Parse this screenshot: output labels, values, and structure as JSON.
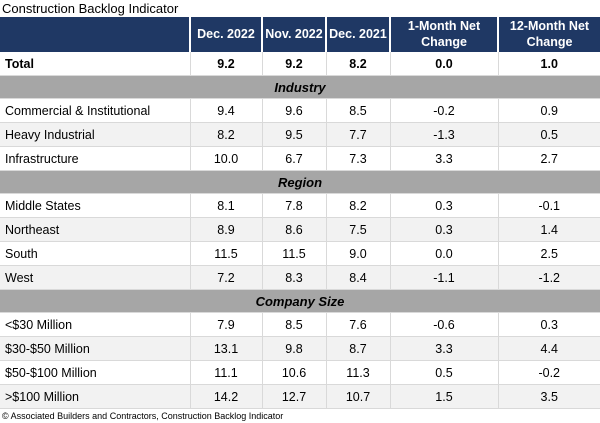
{
  "title": "Construction Backlog Indicator",
  "footer": "© Associated Builders and Contractors, Construction Backlog Indicator",
  "colors": {
    "header_bg": "#1F3864",
    "header_text": "#FFFFFF",
    "section_band_bg": "#A6A6A6",
    "alt_row_bg": "#F2F2F2",
    "grid_line": "#D9D9D9"
  },
  "chart_data": {
    "type": "table",
    "title": "Construction Backlog Indicator",
    "columns": [
      "",
      "Dec. 2022",
      "Nov. 2022",
      "Dec. 2021",
      "1-Month Net Change",
      "12-Month Net Change"
    ],
    "total_row": {
      "label": "Total",
      "values": [
        "9.2",
        "9.2",
        "8.2",
        "0.0",
        "1.0"
      ]
    },
    "sections": [
      {
        "name": "Industry",
        "rows": [
          {
            "label": "Commercial & Institutional",
            "values": [
              "9.4",
              "9.6",
              "8.5",
              "-0.2",
              "0.9"
            ]
          },
          {
            "label": "Heavy Industrial",
            "values": [
              "8.2",
              "9.5",
              "7.7",
              "-1.3",
              "0.5"
            ]
          },
          {
            "label": "Infrastructure",
            "values": [
              "10.0",
              "6.7",
              "7.3",
              "3.3",
              "2.7"
            ]
          }
        ]
      },
      {
        "name": "Region",
        "rows": [
          {
            "label": "Middle States",
            "values": [
              "8.1",
              "7.8",
              "8.2",
              "0.3",
              "-0.1"
            ]
          },
          {
            "label": "Northeast",
            "values": [
              "8.9",
              "8.6",
              "7.5",
              "0.3",
              "1.4"
            ]
          },
          {
            "label": "South",
            "values": [
              "11.5",
              "11.5",
              "9.0",
              "0.0",
              "2.5"
            ]
          },
          {
            "label": "West",
            "values": [
              "7.2",
              "8.3",
              "8.4",
              "-1.1",
              "-1.2"
            ]
          }
        ]
      },
      {
        "name": "Company Size",
        "rows": [
          {
            "label": "<$30 Million",
            "values": [
              "7.9",
              "8.5",
              "7.6",
              "-0.6",
              "0.3"
            ]
          },
          {
            "label": "$30-$50 Million",
            "values": [
              "13.1",
              "9.8",
              "8.7",
              "3.3",
              "4.4"
            ]
          },
          {
            "label": "$50-$100 Million",
            "values": [
              "11.1",
              "10.6",
              "11.3",
              "0.5",
              "-0.2"
            ]
          },
          {
            "label": ">$100 Million",
            "values": [
              "14.2",
              "12.7",
              "10.7",
              "1.5",
              "3.5"
            ]
          }
        ]
      }
    ]
  }
}
